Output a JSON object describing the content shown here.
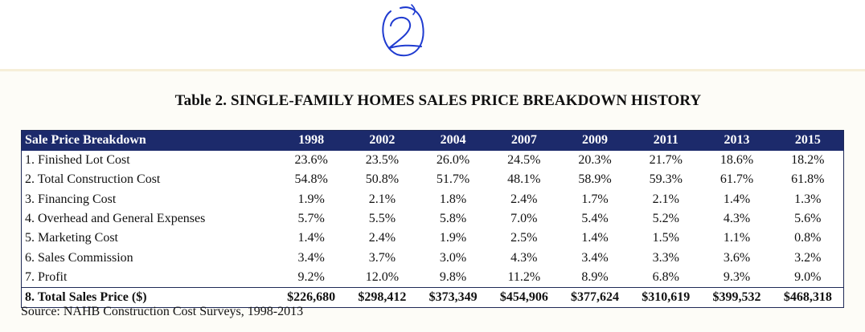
{
  "annotation": {
    "handwritten_mark": "2"
  },
  "title": "Table 2. SINGLE-FAMILY HOMES SALES PRICE BREAKDOWN HISTORY",
  "table": {
    "header_label": "Sale Price Breakdown",
    "years": [
      "1998",
      "2002",
      "2004",
      "2007",
      "2009",
      "2011",
      "2013",
      "2015"
    ],
    "rows": [
      {
        "label": "1. Finished Lot Cost",
        "values": [
          "23.6%",
          "23.5%",
          "26.0%",
          "24.5%",
          "20.3%",
          "21.7%",
          "18.6%",
          "18.2%"
        ]
      },
      {
        "label": "2. Total Construction Cost",
        "values": [
          "54.8%",
          "50.8%",
          "51.7%",
          "48.1%",
          "58.9%",
          "59.3%",
          "61.7%",
          "61.8%"
        ]
      },
      {
        "label": "3. Financing Cost",
        "values": [
          "1.9%",
          "2.1%",
          "1.8%",
          "2.4%",
          "1.7%",
          "2.1%",
          "1.4%",
          "1.3%"
        ]
      },
      {
        "label": "4. Overhead and General Expenses",
        "values": [
          "5.7%",
          "5.5%",
          "5.8%",
          "7.0%",
          "5.4%",
          "5.2%",
          "4.3%",
          "5.6%"
        ]
      },
      {
        "label": "5. Marketing Cost",
        "values": [
          "1.4%",
          "2.4%",
          "1.9%",
          "2.5%",
          "1.4%",
          "1.5%",
          "1.1%",
          "0.8%"
        ]
      },
      {
        "label": "6. Sales Commission",
        "values": [
          "3.4%",
          "3.7%",
          "3.0%",
          "4.3%",
          "3.4%",
          "3.3%",
          "3.6%",
          "3.2%"
        ]
      },
      {
        "label": "7. Profit",
        "values": [
          "9.2%",
          "12.0%",
          "9.8%",
          "11.2%",
          "8.9%",
          "6.8%",
          "9.3%",
          "9.0%"
        ]
      }
    ],
    "total_row": {
      "label": "8. Total Sales Price ($)",
      "values": [
        "$226,680",
        "$298,412",
        "$373,349",
        "$454,906",
        "$377,624",
        "$310,619",
        "$399,532",
        "$468,318"
      ]
    }
  },
  "source": "Source: NAHB Construction Cost Surveys, 1998-2013",
  "colors": {
    "header_bg": "#1c2a6b",
    "header_text": "#ffffff",
    "annotation_ink": "#1f3bd0",
    "page_bg": "#fdfcf7"
  }
}
